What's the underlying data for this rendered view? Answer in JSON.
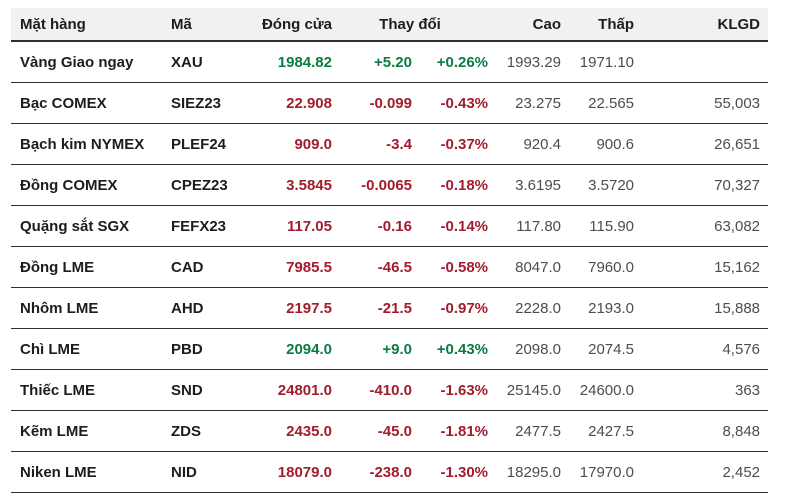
{
  "chart_data": {
    "type": "table",
    "columns": [
      {
        "key": "item",
        "label": "Mặt hàng"
      },
      {
        "key": "code",
        "label": "Mã"
      },
      {
        "key": "close",
        "label": "Đóng cửa"
      },
      {
        "key": "change",
        "label": "Thay đổi"
      },
      {
        "key": "high",
        "label": "Cao"
      },
      {
        "key": "low",
        "label": "Thấp"
      },
      {
        "key": "volume",
        "label": "KLGD"
      }
    ],
    "rows": [
      {
        "item": "Vàng Giao ngay",
        "code": "XAU",
        "close": "1984.82",
        "change": "+5.20",
        "change_pct": "+0.26%",
        "high": "1993.29",
        "low": "1971.10",
        "volume": "",
        "direction": "up"
      },
      {
        "item": "Bạc COMEX",
        "code": "SIEZ23",
        "close": "22.908",
        "change": "-0.099",
        "change_pct": "-0.43%",
        "high": "23.275",
        "low": "22.565",
        "volume": "55,003",
        "direction": "down"
      },
      {
        "item": "Bạch kim NYMEX",
        "code": "PLEF24",
        "close": "909.0",
        "change": "-3.4",
        "change_pct": "-0.37%",
        "high": "920.4",
        "low": "900.6",
        "volume": "26,651",
        "direction": "down"
      },
      {
        "item": "Đồng COMEX",
        "code": "CPEZ23",
        "close": "3.5845",
        "change": "-0.0065",
        "change_pct": "-0.18%",
        "high": "3.6195",
        "low": "3.5720",
        "volume": "70,327",
        "direction": "down"
      },
      {
        "item": "Quặng sắt SGX",
        "code": "FEFX23",
        "close": "117.05",
        "change": "-0.16",
        "change_pct": "-0.14%",
        "high": "117.80",
        "low": "115.90",
        "volume": "63,082",
        "direction": "down"
      },
      {
        "item": "Đồng LME",
        "code": "CAD",
        "close": "7985.5",
        "change": "-46.5",
        "change_pct": "-0.58%",
        "high": "8047.0",
        "low": "7960.0",
        "volume": "15,162",
        "direction": "down"
      },
      {
        "item": "Nhôm LME",
        "code": "AHD",
        "close": "2197.5",
        "change": "-21.5",
        "change_pct": "-0.97%",
        "high": "2228.0",
        "low": "2193.0",
        "volume": "15,888",
        "direction": "down"
      },
      {
        "item": "Chì LME",
        "code": "PBD",
        "close": "2094.0",
        "change": "+9.0",
        "change_pct": "+0.43%",
        "high": "2098.0",
        "low": "2074.5",
        "volume": "4,576",
        "direction": "up"
      },
      {
        "item": "Thiếc LME",
        "code": "SND",
        "close": "24801.0",
        "change": "-410.0",
        "change_pct": "-1.63%",
        "high": "25145.0",
        "low": "24600.0",
        "volume": "363",
        "direction": "down"
      },
      {
        "item": "Kẽm LME",
        "code": "ZDS",
        "close": "2435.0",
        "change": "-45.0",
        "change_pct": "-1.81%",
        "high": "2477.5",
        "low": "2427.5",
        "volume": "8,848",
        "direction": "down"
      },
      {
        "item": "Niken LME",
        "code": "NID",
        "close": "18079.0",
        "change": "-238.0",
        "change_pct": "-1.30%",
        "high": "18295.0",
        "low": "17970.0",
        "volume": "2,452",
        "direction": "down"
      }
    ]
  },
  "colors": {
    "up": "#0a7c43",
    "down": "#a21c2e",
    "header_bg": "#f1f1f1",
    "border": "#2f2f2f",
    "text": "#1d1d1d",
    "muted": "#4d4d4d",
    "background": "#ffffff"
  }
}
